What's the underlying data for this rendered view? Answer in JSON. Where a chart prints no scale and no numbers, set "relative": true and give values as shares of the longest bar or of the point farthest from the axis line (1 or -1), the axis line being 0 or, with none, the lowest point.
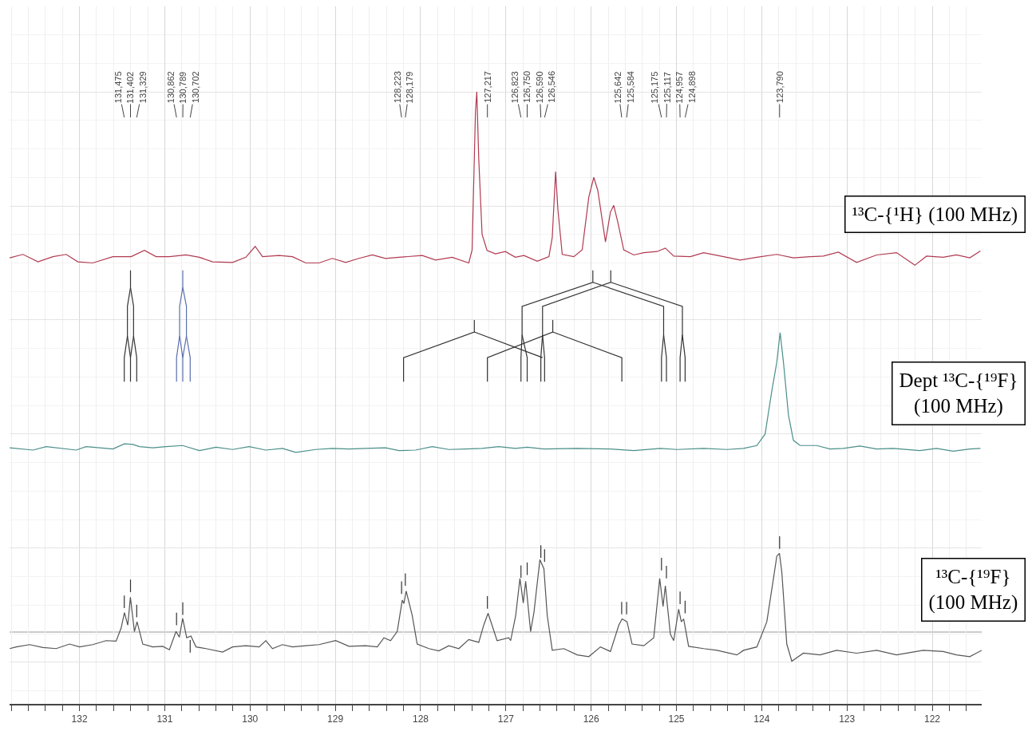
{
  "chart_data": {
    "type": "line",
    "relative": true,
    "grid": true,
    "legend": false,
    "line_style": "solid",
    "xlim": [
      132.82,
      121.42
    ],
    "xticks": [
      {
        "value": 132.8,
        "label": null
      },
      {
        "value": 132.6,
        "label": null
      },
      {
        "value": 132.4,
        "label": null
      },
      {
        "value": 132.2,
        "label": null
      },
      132,
      {
        "value": 131.8,
        "label": null
      },
      {
        "value": 131.6,
        "label": null
      },
      {
        "value": 131.4,
        "label": null
      },
      {
        "value": 131.2,
        "label": null
      },
      131,
      {
        "value": 130.8,
        "label": null
      },
      {
        "value": 130.6,
        "label": null
      },
      {
        "value": 130.4,
        "label": null
      },
      {
        "value": 130.2,
        "label": null
      },
      130,
      {
        "value": 129.8,
        "label": null
      },
      {
        "value": 129.6,
        "label": null
      },
      {
        "value": 129.4,
        "label": null
      },
      {
        "value": 129.2,
        "label": null
      },
      129,
      {
        "value": 128.8,
        "label": null
      },
      {
        "value": 128.6,
        "label": null
      },
      {
        "value": 128.4,
        "label": null
      },
      {
        "value": 128.2,
        "label": null
      },
      128,
      {
        "value": 127.8,
        "label": null
      },
      {
        "value": 127.6,
        "label": null
      },
      {
        "value": 127.4,
        "label": null
      },
      {
        "value": 127.2,
        "label": null
      },
      127,
      {
        "value": 126.8,
        "label": null
      },
      {
        "value": 126.6,
        "label": null
      },
      {
        "value": 126.4,
        "label": null
      },
      {
        "value": 126.2,
        "label": null
      },
      126,
      {
        "value": 125.8,
        "label": null
      },
      {
        "value": 125.6,
        "label": null
      },
      {
        "value": 125.4,
        "label": null
      },
      {
        "value": 125.2,
        "label": null
      },
      125,
      {
        "value": 124.8,
        "label": null
      },
      {
        "value": 124.6,
        "label": null
      },
      {
        "value": 124.4,
        "label": null
      },
      {
        "value": 124.2,
        "label": null
      },
      124,
      {
        "value": 123.8,
        "label": null
      },
      {
        "value": 123.6,
        "label": null
      },
      {
        "value": 123.4,
        "label": null
      },
      {
        "value": 123.2,
        "label": null
      },
      123,
      {
        "value": 122.8,
        "label": null
      },
      {
        "value": 122.6,
        "label": null
      },
      {
        "value": 122.4,
        "label": null
      },
      {
        "value": 122.2,
        "label": null
      },
      122,
      {
        "value": 121.8,
        "label": null
      },
      {
        "value": 121.6,
        "label": null
      }
    ],
    "series": [
      {
        "name": "¹³C-{¹H} (100 MHz)",
        "color": "#b03a50",
        "x": [
          132.819,
          132.663,
          132.487,
          132.312,
          132.156,
          132.019,
          131.844,
          131.609,
          131.395,
          131.239,
          131.102,
          130.946,
          130.751,
          130.595,
          130.439,
          130.205,
          130.049,
          129.94,
          129.854,
          129.659,
          129.503,
          129.347,
          129.191,
          129.035,
          128.878,
          128.723,
          128.566,
          128.411,
          128.254,
          127.981,
          127.825,
          127.63,
          127.435,
          127.396,
          127.357,
          127.341,
          127.318,
          127.279,
          127.221,
          127.123,
          127.006,
          126.889,
          126.788,
          126.632,
          126.495,
          126.456,
          126.417,
          126.39,
          126.339,
          126.203,
          126.105,
          126.027,
          125.969,
          125.922,
          125.832,
          125.774,
          125.735,
          125.688,
          125.618,
          125.5,
          125.383,
          125.227,
          125.13,
          125.032,
          124.837,
          124.681,
          124.447,
          124.252,
          124.057,
          123.823,
          123.628,
          123.433,
          123.277,
          123.101,
          122.887,
          122.652,
          122.419,
          122.204,
          122.067,
          121.872,
          121.716,
          121.56,
          121.435
        ],
        "values": [
          0.709,
          0.715,
          0.702,
          0.711,
          0.715,
          0.702,
          0.7,
          0.711,
          0.711,
          0.722,
          0.711,
          0.711,
          0.714,
          0.71,
          0.702,
          0.701,
          0.71,
          0.729,
          0.711,
          0.713,
          0.711,
          0.7,
          0.7,
          0.708,
          0.701,
          0.708,
          0.714,
          0.708,
          0.71,
          0.713,
          0.705,
          0.71,
          0.7,
          0.723,
          0.964,
          1.0,
          0.882,
          0.75,
          0.722,
          0.716,
          0.72,
          0.71,
          0.713,
          0.703,
          0.711,
          0.745,
          0.86,
          0.794,
          0.715,
          0.711,
          0.723,
          0.816,
          0.85,
          0.827,
          0.737,
          0.789,
          0.801,
          0.772,
          0.723,
          0.714,
          0.718,
          0.72,
          0.726,
          0.712,
          0.711,
          0.718,
          0.711,
          0.705,
          0.71,
          0.715,
          0.709,
          0.711,
          0.712,
          0.719,
          0.701,
          0.714,
          0.718,
          0.696,
          0.712,
          0.71,
          0.714,
          0.709,
          0.721
        ]
      },
      {
        "name": "Dept ¹³C-{¹⁹F}\n(100 MHz)",
        "color": "#4a8f8a",
        "x": [
          132.819,
          132.546,
          132.39,
          132.039,
          131.922,
          131.609,
          131.473,
          131.375,
          131.297,
          131.141,
          130.985,
          130.79,
          130.595,
          130.4,
          130.205,
          130.01,
          129.815,
          129.62,
          129.464,
          129.23,
          129.035,
          128.84,
          128.645,
          128.411,
          128.254,
          128.059,
          127.864,
          127.669,
          127.474,
          127.279,
          127.084,
          126.889,
          126.749,
          126.554,
          126.164,
          125.774,
          125.5,
          125.188,
          124.993,
          124.681,
          124.408,
          124.213,
          124.057,
          123.96,
          123.881,
          123.823,
          123.784,
          123.745,
          123.686,
          123.628,
          123.55,
          123.355,
          123.199,
          123.043,
          122.848,
          122.652,
          122.457,
          122.145,
          121.95,
          121.755,
          121.56,
          121.435
        ],
        "values": [
          0.376,
          0.372,
          0.378,
          0.372,
          0.378,
          0.374,
          0.383,
          0.382,
          0.378,
          0.376,
          0.378,
          0.38,
          0.371,
          0.377,
          0.373,
          0.378,
          0.372,
          0.375,
          0.368,
          0.373,
          0.375,
          0.374,
          0.375,
          0.376,
          0.371,
          0.372,
          0.378,
          0.373,
          0.374,
          0.375,
          0.378,
          0.375,
          0.377,
          0.374,
          0.375,
          0.374,
          0.371,
          0.375,
          0.373,
          0.375,
          0.373,
          0.375,
          0.38,
          0.4,
          0.476,
          0.526,
          0.578,
          0.526,
          0.433,
          0.389,
          0.38,
          0.38,
          0.374,
          0.375,
          0.379,
          0.374,
          0.375,
          0.371,
          0.375,
          0.37,
          0.374,
          0.375
        ]
      },
      {
        "name": "¹³C-{¹⁹F}\n(100 MHz)",
        "color": "#555555",
        "x": [
          132.819,
          132.741,
          132.585,
          132.429,
          132.273,
          132.117,
          132.0,
          131.844,
          131.688,
          131.571,
          131.512,
          131.473,
          131.434,
          131.403,
          131.356,
          131.325,
          131.258,
          131.141,
          131.024,
          130.946,
          130.868,
          130.829,
          130.79,
          130.743,
          130.693,
          130.634,
          130.517,
          130.322,
          130.205,
          130.049,
          129.893,
          129.815,
          129.737,
          129.62,
          129.503,
          129.347,
          129.191,
          128.996,
          128.84,
          128.645,
          128.508,
          128.43,
          128.352,
          128.274,
          128.215,
          128.196,
          128.169,
          128.098,
          128.04,
          127.903,
          127.786,
          127.669,
          127.552,
          127.435,
          127.318,
          127.26,
          127.209,
          127.162,
          127.103,
          126.967,
          126.944,
          126.885,
          126.835,
          126.796,
          126.768,
          126.71,
          126.671,
          126.601,
          126.554,
          126.515,
          126.456,
          126.32,
          126.164,
          126.027,
          125.891,
          125.774,
          125.676,
          125.637,
          125.579,
          125.52,
          125.383,
          125.266,
          125.196,
          125.157,
          125.13,
          125.071,
          125.032,
          124.974,
          124.943,
          124.915,
          124.857,
          124.681,
          124.525,
          124.291,
          124.213,
          124.057,
          123.94,
          123.862,
          123.823,
          123.792,
          123.764,
          123.706,
          123.647,
          123.511,
          123.316,
          123.121,
          122.887,
          122.652,
          122.419,
          122.106,
          121.872,
          121.716,
          121.56,
          121.42
        ],
        "values": [
          0.024,
          0.027,
          0.031,
          0.026,
          0.024,
          0.032,
          0.027,
          0.031,
          0.038,
          0.037,
          0.06,
          0.087,
          0.065,
          0.114,
          0.054,
          0.071,
          0.032,
          0.027,
          0.028,
          0.022,
          0.054,
          0.044,
          0.077,
          0.043,
          0.046,
          0.027,
          0.024,
          0.018,
          0.027,
          0.029,
          0.027,
          0.038,
          0.024,
          0.031,
          0.027,
          0.029,
          0.031,
          0.038,
          0.028,
          0.029,
          0.027,
          0.043,
          0.038,
          0.054,
          0.109,
          0.103,
          0.125,
          0.082,
          0.032,
          0.024,
          0.02,
          0.029,
          0.024,
          0.04,
          0.035,
          0.065,
          0.086,
          0.065,
          0.038,
          0.043,
          0.038,
          0.082,
          0.147,
          0.104,
          0.142,
          0.054,
          0.087,
          0.18,
          0.164,
          0.082,
          0.021,
          0.024,
          0.013,
          0.01,
          0.027,
          0.019,
          0.065,
          0.076,
          0.071,
          0.032,
          0.029,
          0.043,
          0.147,
          0.098,
          0.134,
          0.049,
          0.038,
          0.093,
          0.071,
          0.076,
          0.028,
          0.024,
          0.021,
          0.013,
          0.021,
          0.027,
          0.071,
          0.147,
          0.186,
          0.191,
          0.158,
          0.032,
          0.002,
          0.016,
          0.013,
          0.021,
          0.016,
          0.021,
          0.013,
          0.021,
          0.019,
          0.013,
          0.01,
          0.021
        ]
      },
      {
        "color": "#333333",
        "x": [
          131.402,
          131.402,
          131.438,
          131.438,
          131.475,
          131.475,
          null,
          131.438,
          131.402,
          131.402,
          null,
          131.402,
          131.366,
          131.366,
          131.402,
          null,
          131.366,
          131.329,
          131.329,
          null,
          127.37,
          127.37,
          128.2,
          128.2,
          null,
          127.37,
          126.57,
          null,
          126.45,
          126.45,
          127.217,
          127.217,
          null,
          126.45,
          125.64,
          125.64,
          null,
          125.98,
          125.98,
          126.81,
          126.81,
          126.823,
          126.823,
          null,
          126.81,
          126.75,
          126.75,
          null,
          125.98,
          125.15,
          125.15,
          125.175,
          125.175,
          null,
          125.15,
          125.117,
          125.117,
          null,
          125.77,
          125.77,
          126.57,
          126.57,
          126.59,
          126.59,
          null,
          126.57,
          126.546,
          126.546,
          null,
          125.77,
          124.93,
          124.93,
          124.957,
          124.957,
          null,
          124.93,
          124.898,
          124.898
        ],
        "values": [
          0.687,
          0.657,
          0.624,
          0.572,
          0.534,
          0.492,
          null,
          0.572,
          0.534,
          0.492,
          null,
          0.657,
          0.624,
          0.572,
          0.534,
          null,
          0.572,
          0.534,
          0.492,
          null,
          0.6,
          0.579,
          0.534,
          0.492,
          null,
          0.579,
          0.534,
          null,
          0.6,
          0.579,
          0.534,
          0.492,
          null,
          0.579,
          0.534,
          0.492,
          null,
          0.687,
          0.666,
          0.624,
          0.574,
          0.534,
          0.492,
          null,
          0.574,
          0.534,
          0.492,
          null,
          0.666,
          0.624,
          0.574,
          0.534,
          0.492,
          null,
          0.574,
          0.534,
          0.492,
          null,
          0.687,
          0.666,
          0.624,
          0.574,
          0.534,
          0.492,
          null,
          0.574,
          0.534,
          0.492,
          null,
          0.666,
          0.624,
          0.574,
          0.534,
          0.492,
          null,
          0.574,
          0.534,
          0.492
        ]
      },
      {
        "color": "#5a6fb0",
        "x": [
          130.789,
          130.789,
          130.826,
          130.826,
          130.862,
          130.862,
          null,
          130.826,
          130.789,
          130.789,
          null,
          130.789,
          130.746,
          130.746,
          130.789,
          null,
          130.746,
          130.702,
          130.702
        ],
        "values": [
          0.687,
          0.657,
          0.624,
          0.572,
          0.534,
          0.492,
          null,
          0.572,
          0.534,
          0.492,
          null,
          0.657,
          0.624,
          0.572,
          0.534,
          null,
          0.572,
          0.534,
          0.492
        ]
      },
      {
        "color": "#333333",
        "x": [
          131.475,
          131.475,
          null,
          131.402,
          131.402,
          null,
          131.329,
          131.329,
          null,
          130.862,
          130.862,
          null,
          130.789,
          130.789,
          null,
          130.702,
          130.702,
          null,
          128.223,
          128.223,
          null,
          128.179,
          128.179,
          null,
          127.217,
          127.217,
          null,
          126.823,
          126.823,
          null,
          126.75,
          126.75,
          null,
          126.59,
          126.59,
          null,
          126.546,
          126.546,
          null,
          125.642,
          125.642,
          null,
          125.584,
          125.584,
          null,
          125.175,
          125.175,
          null,
          125.117,
          125.117,
          null,
          124.957,
          124.957,
          null,
          124.898,
          124.898,
          null,
          123.79,
          123.79
        ],
        "values": [
          0.095,
          0.117,
          null,
          0.123,
          0.145,
          null,
          0.079,
          0.101,
          null,
          0.065,
          0.087,
          null,
          0.083,
          0.105,
          null,
          0.017,
          0.039,
          null,
          0.12,
          0.142,
          null,
          0.134,
          0.156,
          null,
          0.094,
          0.116,
          null,
          0.148,
          0.17,
          null,
          0.153,
          0.175,
          null,
          0.183,
          0.205,
          null,
          0.176,
          0.198,
          null,
          0.084,
          0.106,
          null,
          0.084,
          0.106,
          null,
          0.161,
          0.183,
          null,
          0.147,
          0.169,
          null,
          0.102,
          0.124,
          null,
          0.086,
          0.108,
          null,
          0.199,
          0.221
        ]
      }
    ],
    "ref_lines": [
      {
        "axis": "y",
        "value": 0.053,
        "color": "#bbbbbb"
      }
    ],
    "annotations": [
      {
        "text": "131,475",
        "x": 131.475
      },
      {
        "text": "131,402",
        "x": 131.402
      },
      {
        "text": "131,329",
        "x": 131.329
      },
      {
        "text": "130,862",
        "x": 130.862
      },
      {
        "text": "130,789",
        "x": 130.789
      },
      {
        "text": "130,702",
        "x": 130.702
      },
      {
        "text": "128,223",
        "x": 128.223
      },
      {
        "text": "128,179",
        "x": 128.179
      },
      {
        "text": "127,217",
        "x": 127.217
      },
      {
        "text": "126,823",
        "x": 126.823
      },
      {
        "text": "126,750",
        "x": 126.75
      },
      {
        "text": "126,590",
        "x": 126.59
      },
      {
        "text": "126,546",
        "x": 126.546
      },
      {
        "text": "125,642",
        "x": 125.642
      },
      {
        "text": "125,584",
        "x": 125.584
      },
      {
        "text": "125,175",
        "x": 125.175
      },
      {
        "text": "125,117",
        "x": 125.117
      },
      {
        "text": "124,957",
        "x": 124.957
      },
      {
        "text": "124,898",
        "x": 124.898
      },
      {
        "text": "123,790",
        "x": 123.79
      }
    ]
  }
}
